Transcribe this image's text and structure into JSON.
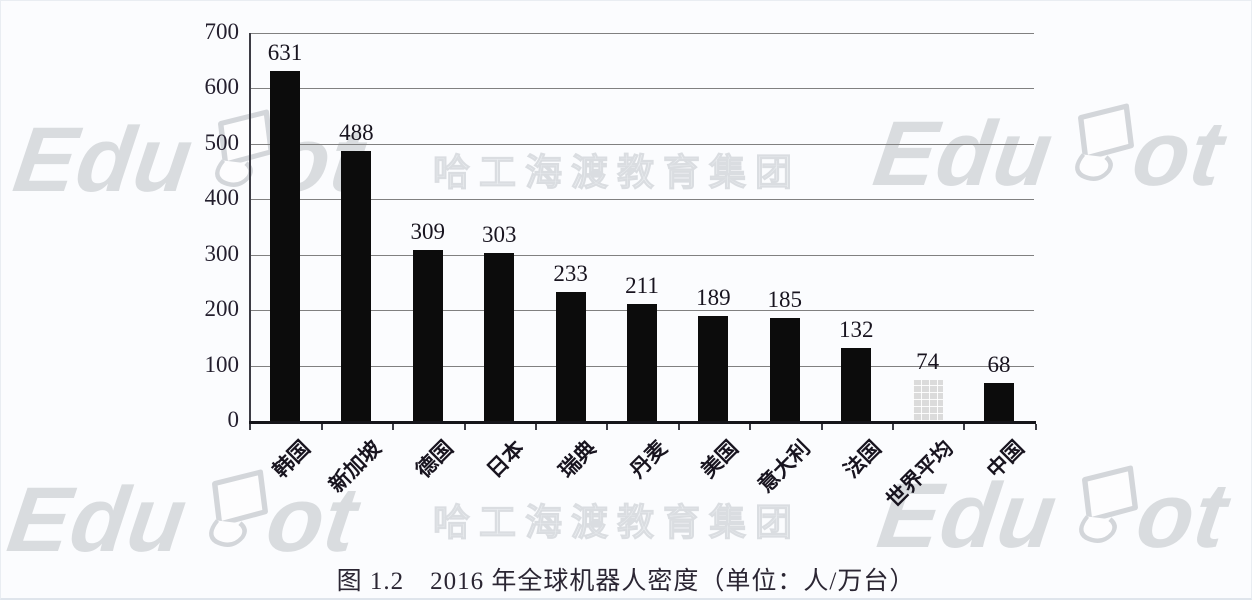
{
  "watermarks": {
    "edubot_prefix": "Edu",
    "edubot_suffix": "ot",
    "brand_name": "EduBot",
    "company_name": "哈工海渡教育集团"
  },
  "chart_data": {
    "type": "bar",
    "title": "2016 年全球机器人密度",
    "unit_label": "人/万台",
    "categories": [
      "韩国",
      "新加坡",
      "德国",
      "日本",
      "瑞典",
      "丹麦",
      "美国",
      "意大利",
      "法国",
      "世界平均",
      "中国"
    ],
    "values": [
      631,
      488,
      309,
      303,
      233,
      211,
      189,
      185,
      132,
      74,
      68
    ],
    "ylim": [
      0,
      700
    ],
    "yticks": [
      0,
      100,
      200,
      300,
      400,
      500,
      600,
      700
    ],
    "grid": true,
    "legend": false,
    "bar_color": "#0c0c0c",
    "highlight_category": "世界平均",
    "highlight_color": "#dbdbdb"
  },
  "caption": "图 1.2　2016 年全球机器人密度（单位：人/万台）"
}
